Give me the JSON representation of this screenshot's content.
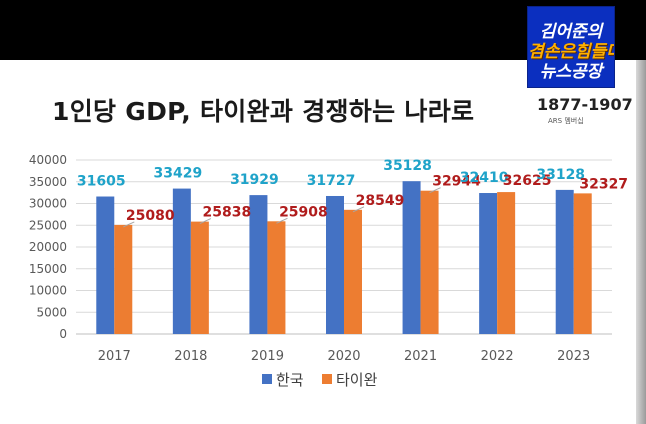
{
  "chart_data": {
    "type": "bar",
    "title": "1인당 GDP, 타이완과 경쟁하는 나라로 ",
    "categories": [
      "2017",
      "2018",
      "2019",
      "2020",
      "2021",
      "2022",
      "2023"
    ],
    "series": [
      {
        "name": "한국",
        "values": [
          31605,
          33429,
          31929,
          31727,
          35128,
          32410,
          33128
        ],
        "color": "#4472c4",
        "label_color": "#1fa3c9"
      },
      {
        "name": "타이완",
        "values": [
          25080,
          25838,
          25908,
          28549,
          32944,
          32625,
          32327
        ],
        "color": "#ed7d31",
        "label_color": "#b01c1c"
      }
    ],
    "yticks": [
      "0",
      "5000",
      "10000",
      "15000",
      "20000",
      "25000",
      "30000",
      "35000",
      "40000"
    ],
    "ylim": [
      0,
      40000
    ],
    "xlabel": "",
    "ylabel": "",
    "grid": true,
    "legend": "bottom"
  },
  "overlay": {
    "badge_line1": "김어준의",
    "badge_line2": "겸손은힘들다",
    "badge_line3": "뉴스공장",
    "phone": "1877-1907",
    "ars": "ARS 멤버십"
  }
}
